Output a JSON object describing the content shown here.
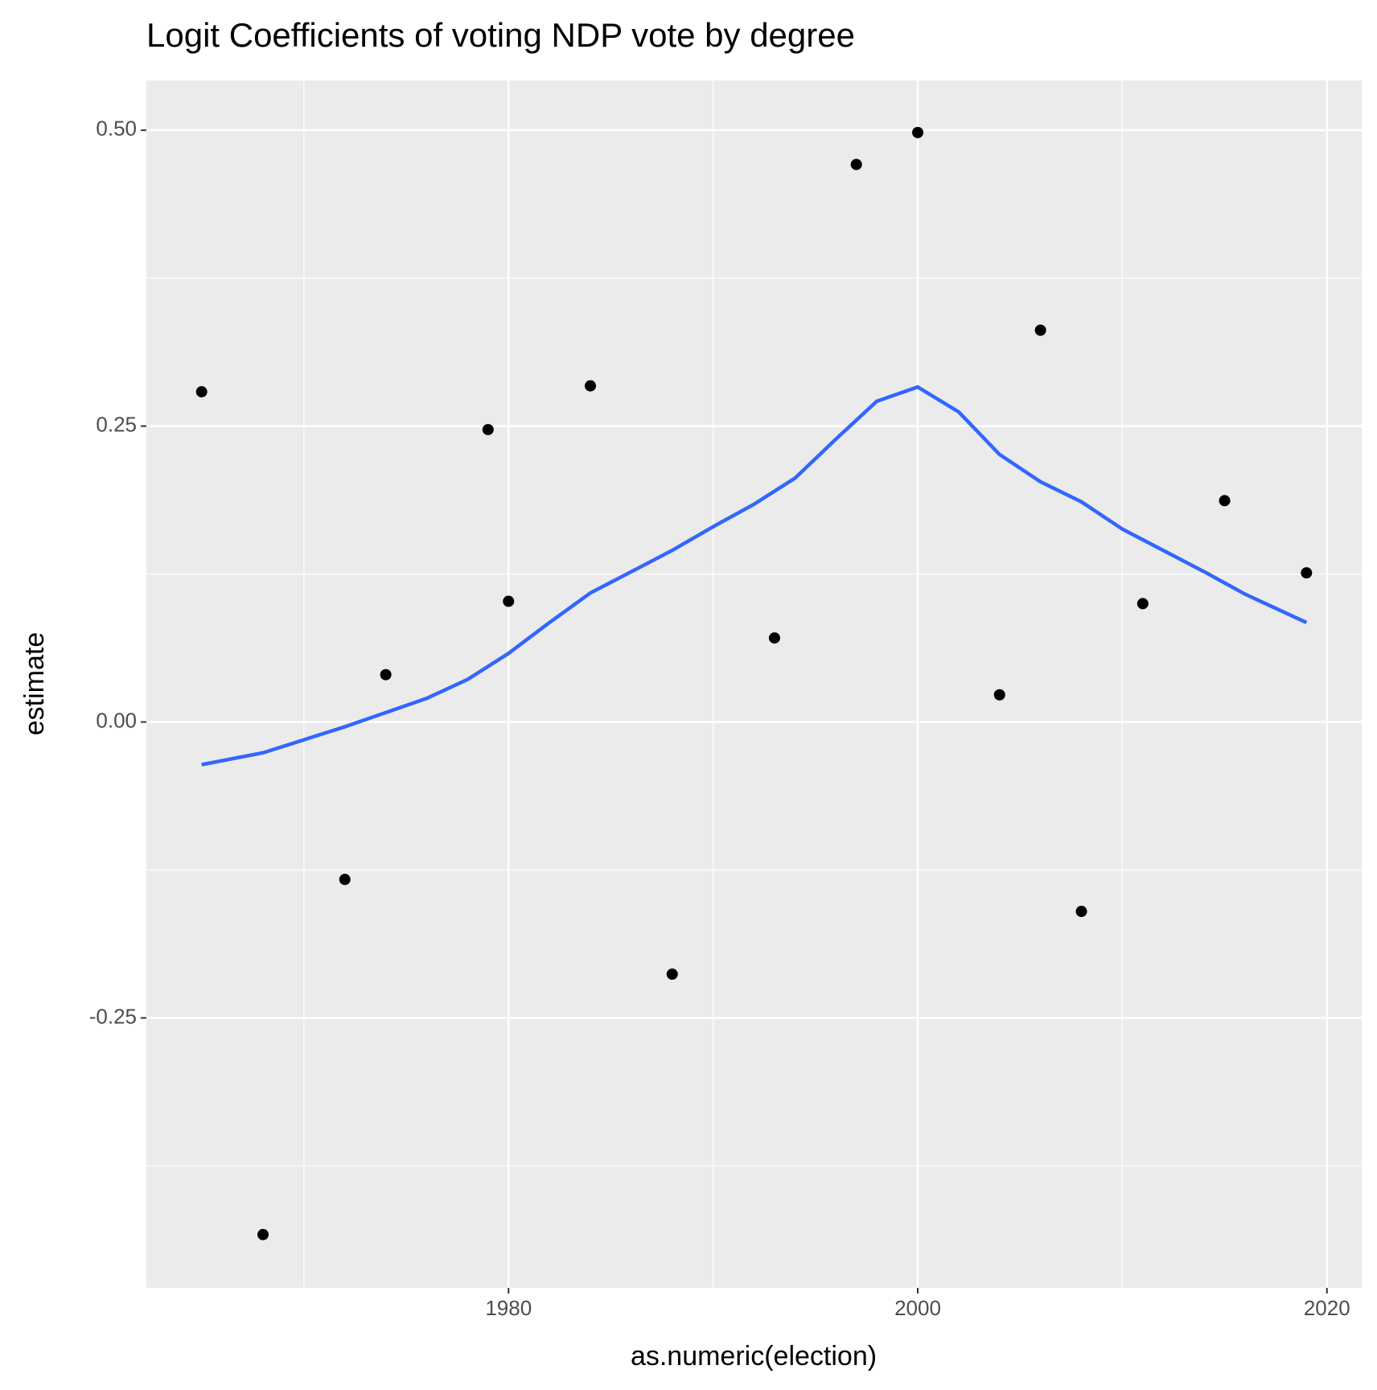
{
  "chart_data": {
    "type": "scatter",
    "title": "Logit Coefficients of voting NDP vote by degree",
    "x_label": "as.numeric(election)",
    "y_label": "estimate",
    "x": [
      1965,
      1968,
      1972,
      1974,
      1979,
      1980,
      1984,
      1988,
      1993,
      1997,
      2000,
      2004,
      2006,
      2008,
      2011,
      2015,
      2019
    ],
    "values": [
      0.279,
      -0.433,
      -0.133,
      0.04,
      0.247,
      0.102,
      0.284,
      -0.213,
      0.071,
      0.471,
      0.498,
      0.023,
      0.331,
      -0.16,
      0.1,
      0.187,
      0.126
    ],
    "color": "#000000",
    "smooth": {
      "type": "line",
      "color": "#3366FF",
      "x": [
        1965,
        1968,
        1972,
        1974,
        1976,
        1978,
        1980,
        1982,
        1984,
        1986,
        1988,
        1990,
        1992,
        1994,
        1996,
        1998,
        2000,
        2002,
        2004,
        2006,
        2008,
        2010,
        2012,
        2014,
        2016,
        2018,
        2019
      ],
      "values": [
        -0.036,
        -0.026,
        -0.004,
        0.008,
        0.02,
        0.036,
        0.058,
        0.084,
        0.109,
        0.127,
        0.145,
        0.165,
        0.184,
        0.206,
        0.239,
        0.271,
        0.283,
        0.262,
        0.226,
        0.203,
        0.186,
        0.163,
        0.145,
        0.127,
        0.108,
        0.092,
        0.084
      ]
    },
    "xlim": [
      1962.3,
      2021.7
    ],
    "ylim": [
      -0.478,
      0.542
    ],
    "xticks": [
      1980,
      2000,
      2020
    ],
    "yticks": [
      {
        "value": 0.5,
        "label": "0.50"
      },
      {
        "value": 0.25,
        "label": "0.25"
      },
      {
        "value": 0,
        "label": "0.00"
      },
      {
        "value": -0.25,
        "label": "-0.25"
      }
    ],
    "x_minor_ticks": [
      1970,
      1990,
      2010
    ],
    "y_minor_ticks": [
      0.375,
      0.125,
      -0.125,
      -0.375
    ],
    "grid": true
  }
}
